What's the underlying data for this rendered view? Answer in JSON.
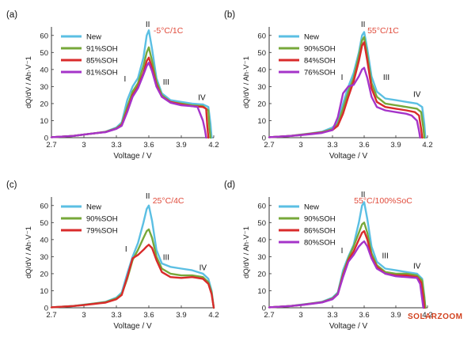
{
  "watermark": "SOLARZOOM",
  "colors": {
    "New": "#5bbfe3",
    "green": "#77a83a",
    "red": "#d92b2b",
    "purple": "#a534c9",
    "cond": "#e04a3a",
    "axis": "#333333"
  },
  "chart_data": [
    {
      "type": "line",
      "panel": "(a)",
      "condition": "-5°C/1C",
      "xlabel": "Voltage / V",
      "ylabel": "dQ/dV / Ah·V⁻1",
      "xlim": [
        2.7,
        4.2
      ],
      "ylim": [
        0,
        65
      ],
      "xticks": [
        "2.7",
        "3",
        "3.3",
        "3.6",
        "3.9",
        "4.2"
      ],
      "yticks": [
        "0",
        "10",
        "20",
        "30",
        "40",
        "50",
        "60"
      ],
      "peak_labels": [
        {
          "text": "I",
          "x": 3.38,
          "y": 33
        },
        {
          "text": "II",
          "x": 3.59,
          "y": 65
        },
        {
          "text": "III",
          "x": 3.76,
          "y": 31
        },
        {
          "text": "IV",
          "x": 4.09,
          "y": 22
        }
      ],
      "series": [
        {
          "name": "New",
          "color": "#5bbfe3",
          "x": [
            2.7,
            2.9,
            3.0,
            3.1,
            3.2,
            3.3,
            3.35,
            3.4,
            3.45,
            3.5,
            3.55,
            3.58,
            3.6,
            3.63,
            3.67,
            3.72,
            3.8,
            3.9,
            4.0,
            4.1,
            4.15,
            4.17,
            4.18
          ],
          "y": [
            0.3,
            1,
            1.8,
            2.6,
            3.5,
            6,
            9,
            22,
            30,
            35,
            47,
            60,
            63,
            52,
            35,
            26,
            22,
            21,
            20,
            19.5,
            18,
            8,
            0
          ]
        },
        {
          "name": "91%SOH",
          "color": "#77a83a",
          "x": [
            2.7,
            2.9,
            3.0,
            3.1,
            3.2,
            3.3,
            3.35,
            3.4,
            3.45,
            3.5,
            3.55,
            3.58,
            3.6,
            3.63,
            3.67,
            3.72,
            3.8,
            3.9,
            4.0,
            4.1,
            4.15,
            4.16,
            4.17
          ],
          "y": [
            0.3,
            1,
            1.8,
            2.6,
            3.4,
            5.5,
            8,
            18,
            27,
            32,
            42,
            50,
            53,
            45,
            33,
            25,
            21,
            20,
            19,
            18.5,
            16,
            6,
            0
          ]
        },
        {
          "name": "85%SOH",
          "color": "#d92b2b",
          "x": [
            2.7,
            2.9,
            3.0,
            3.1,
            3.2,
            3.3,
            3.35,
            3.4,
            3.45,
            3.5,
            3.55,
            3.58,
            3.6,
            3.63,
            3.67,
            3.72,
            3.8,
            3.9,
            4.0,
            4.1,
            4.13,
            4.14,
            4.15
          ],
          "y": [
            0.3,
            1,
            1.8,
            2.6,
            3.3,
            5.3,
            7.5,
            16,
            25,
            30,
            38,
            45,
            47,
            41,
            31,
            24,
            21,
            19.5,
            18.5,
            18,
            17,
            7,
            0
          ]
        },
        {
          "name": "81%SOH",
          "color": "#a534c9",
          "x": [
            2.7,
            2.9,
            3.0,
            3.1,
            3.2,
            3.3,
            3.35,
            3.4,
            3.45,
            3.5,
            3.55,
            3.58,
            3.6,
            3.63,
            3.67,
            3.72,
            3.8,
            3.9,
            4.0,
            4.05,
            4.1,
            4.12,
            4.13
          ],
          "y": [
            0.3,
            1,
            1.8,
            2.6,
            3.2,
            5.2,
            7,
            15,
            24,
            29,
            37,
            42,
            44,
            39,
            30,
            24,
            20.5,
            19,
            18.5,
            18,
            10,
            4,
            0
          ]
        }
      ]
    },
    {
      "type": "line",
      "panel": "(b)",
      "condition": "55°C/1C",
      "xlabel": "Voltage / V",
      "ylabel": "dQ/dV / Ah·V⁻1",
      "xlim": [
        2.7,
        4.2
      ],
      "ylim": [
        0,
        65
      ],
      "xticks": [
        "2.7",
        "3",
        "3.3",
        "3.6",
        "3.9",
        "4.2"
      ],
      "yticks": [
        "0",
        "10",
        "20",
        "30",
        "40",
        "50",
        "60"
      ],
      "peak_labels": [
        {
          "text": "I",
          "x": 3.39,
          "y": 34
        },
        {
          "text": "II",
          "x": 3.59,
          "y": 65
        },
        {
          "text": "III",
          "x": 3.81,
          "y": 34
        },
        {
          "text": "IV",
          "x": 4.1,
          "y": 24
        }
      ],
      "series": [
        {
          "name": "New",
          "color": "#5bbfe3",
          "x": [
            2.7,
            2.9,
            3.0,
            3.1,
            3.2,
            3.3,
            3.35,
            3.4,
            3.45,
            3.5,
            3.55,
            3.58,
            3.6,
            3.63,
            3.67,
            3.72,
            3.8,
            3.9,
            4.0,
            4.1,
            4.15,
            4.17,
            4.18
          ],
          "y": [
            0.3,
            1,
            1.8,
            2.6,
            3.5,
            6,
            9,
            20,
            30,
            38,
            50,
            60,
            62,
            52,
            36,
            27,
            23,
            22,
            21,
            20,
            18,
            8,
            0
          ]
        },
        {
          "name": "90%SOH",
          "color": "#77a83a",
          "x": [
            2.7,
            2.9,
            3.0,
            3.1,
            3.2,
            3.3,
            3.35,
            3.4,
            3.45,
            3.5,
            3.55,
            3.58,
            3.6,
            3.63,
            3.67,
            3.72,
            3.8,
            3.9,
            4.0,
            4.1,
            4.14,
            4.16,
            4.17
          ],
          "y": [
            0.3,
            1,
            1.7,
            2.4,
            3.2,
            5,
            8,
            17,
            27,
            35,
            48,
            57,
            59,
            48,
            32,
            24,
            20,
            19,
            18,
            17,
            15,
            6,
            0
          ]
        },
        {
          "name": "84%SOH",
          "color": "#d92b2b",
          "x": [
            2.7,
            2.9,
            3.0,
            3.1,
            3.2,
            3.3,
            3.35,
            3.4,
            3.45,
            3.5,
            3.55,
            3.58,
            3.6,
            3.63,
            3.67,
            3.72,
            3.8,
            3.9,
            4.0,
            4.08,
            4.12,
            4.14,
            4.15
          ],
          "y": [
            0.3,
            1,
            1.6,
            2.3,
            3,
            4.5,
            7,
            14,
            24,
            33,
            45,
            54,
            56,
            45,
            29,
            21,
            18,
            17,
            16,
            15,
            13,
            5,
            0
          ]
        },
        {
          "name": "76%SOH",
          "color": "#a534c9",
          "x": [
            2.7,
            2.9,
            3.0,
            3.1,
            3.2,
            3.3,
            3.35,
            3.4,
            3.45,
            3.5,
            3.55,
            3.58,
            3.6,
            3.63,
            3.67,
            3.72,
            3.8,
            3.9,
            4.0,
            4.05,
            4.1,
            4.12,
            4.13
          ],
          "y": [
            0.3,
            1,
            1.5,
            2.1,
            2.8,
            4.5,
            12,
            26,
            30,
            31,
            36,
            40,
            41,
            35,
            24,
            18,
            16,
            15,
            14,
            13,
            10,
            4,
            0
          ]
        }
      ]
    },
    {
      "type": "line",
      "panel": "(c)",
      "condition": "25°C/4C",
      "xlabel": "Voltage / V",
      "ylabel": "dQ/dV / Ah·V⁻1",
      "xlim": [
        2.7,
        4.2
      ],
      "ylim": [
        0,
        65
      ],
      "xticks": [
        "2.7",
        "3",
        "3.3",
        "3.6",
        "3.9",
        "4.2"
      ],
      "yticks": [
        "0",
        "10",
        "20",
        "30",
        "40",
        "50",
        "60"
      ],
      "peak_labels": [
        {
          "text": "I",
          "x": 3.39,
          "y": 33
        },
        {
          "text": "II",
          "x": 3.59,
          "y": 64
        },
        {
          "text": "III",
          "x": 3.76,
          "y": 28
        },
        {
          "text": "IV",
          "x": 4.1,
          "y": 22
        }
      ],
      "series": [
        {
          "name": "New",
          "color": "#5bbfe3",
          "x": [
            2.7,
            2.9,
            3.0,
            3.1,
            3.2,
            3.3,
            3.35,
            3.4,
            3.45,
            3.5,
            3.55,
            3.58,
            3.6,
            3.63,
            3.67,
            3.72,
            3.8,
            3.9,
            4.0,
            4.1,
            4.15,
            4.18,
            4.2
          ],
          "y": [
            0.3,
            1,
            1.8,
            2.6,
            3.5,
            6,
            9,
            20,
            30,
            38,
            50,
            58,
            60,
            51,
            34,
            26,
            24,
            23,
            22,
            20,
            17,
            10,
            0
          ]
        },
        {
          "name": "90%SOH",
          "color": "#77a83a",
          "x": [
            2.7,
            2.9,
            3.0,
            3.1,
            3.2,
            3.3,
            3.35,
            3.4,
            3.45,
            3.5,
            3.55,
            3.58,
            3.6,
            3.63,
            3.67,
            3.72,
            3.8,
            3.9,
            4.0,
            4.1,
            4.15,
            4.18,
            4.2
          ],
          "y": [
            0.3,
            1,
            1.7,
            2.5,
            3.3,
            5.5,
            8,
            17,
            28,
            34,
            41,
            45,
            46,
            41,
            30,
            23,
            20,
            19,
            19,
            18,
            15,
            9,
            0
          ]
        },
        {
          "name": "79%SOH",
          "color": "#d92b2b",
          "x": [
            2.7,
            2.9,
            3.0,
            3.1,
            3.2,
            3.3,
            3.35,
            3.4,
            3.45,
            3.5,
            3.55,
            3.58,
            3.6,
            3.63,
            3.67,
            3.72,
            3.8,
            3.9,
            4.0,
            4.1,
            4.15,
            4.18,
            4.2
          ],
          "y": [
            0.3,
            1,
            1.6,
            2.3,
            3,
            5,
            7.5,
            18,
            29,
            31,
            34,
            36,
            37,
            35,
            28,
            21,
            18,
            17.5,
            18,
            17,
            14,
            8,
            0
          ]
        }
      ]
    },
    {
      "type": "line",
      "panel": "(d)",
      "condition": "55°C/100%SoC",
      "xlabel": "Voltage / V",
      "ylabel": "dQ/dV / Ah·V⁻1",
      "xlim": [
        2.7,
        4.2
      ],
      "ylim": [
        0,
        65
      ],
      "xticks": [
        "2.7",
        "3",
        "3.3",
        "3.6",
        "3.9",
        "4.2"
      ],
      "yticks": [
        "0",
        "10",
        "20",
        "30",
        "40",
        "50",
        "60"
      ],
      "peak_labels": [
        {
          "text": "I",
          "x": 3.39,
          "y": 32
        },
        {
          "text": "II",
          "x": 3.59,
          "y": 65
        },
        {
          "text": "III",
          "x": 3.8,
          "y": 29
        },
        {
          "text": "IV",
          "x": 4.1,
          "y": 23
        }
      ],
      "series": [
        {
          "name": "New",
          "color": "#5bbfe3",
          "x": [
            2.7,
            2.9,
            3.0,
            3.1,
            3.2,
            3.3,
            3.35,
            3.4,
            3.45,
            3.5,
            3.55,
            3.58,
            3.6,
            3.63,
            3.67,
            3.72,
            3.8,
            3.9,
            4.0,
            4.1,
            4.15,
            4.17,
            4.18
          ],
          "y": [
            0.3,
            1,
            1.8,
            2.6,
            3.5,
            6,
            9,
            22,
            30,
            37,
            50,
            60,
            62,
            52,
            36,
            27,
            23,
            22,
            21,
            20,
            17,
            7,
            0
          ]
        },
        {
          "name": "90%SOH",
          "color": "#77a83a",
          "x": [
            2.7,
            2.9,
            3.0,
            3.1,
            3.2,
            3.3,
            3.35,
            3.4,
            3.45,
            3.5,
            3.55,
            3.58,
            3.6,
            3.63,
            3.67,
            3.72,
            3.8,
            3.9,
            4.0,
            4.1,
            4.15,
            4.17,
            4.18
          ],
          "y": [
            0.3,
            1,
            1.7,
            2.5,
            3.3,
            5.5,
            8.5,
            20,
            29,
            36,
            44,
            49,
            50,
            44,
            32,
            25,
            21,
            20,
            20,
            19,
            16,
            6,
            0
          ]
        },
        {
          "name": "86%SOH",
          "color": "#d92b2b",
          "x": [
            2.7,
            2.9,
            3.0,
            3.1,
            3.2,
            3.3,
            3.35,
            3.4,
            3.45,
            3.5,
            3.55,
            3.58,
            3.6,
            3.63,
            3.67,
            3.72,
            3.8,
            3.9,
            4.0,
            4.1,
            4.14,
            4.16,
            4.17
          ],
          "y": [
            0.3,
            1,
            1.6,
            2.4,
            3.2,
            5.2,
            8,
            19,
            28,
            33,
            40,
            44,
            45,
            40,
            30,
            24,
            20,
            19,
            19,
            18,
            15,
            6,
            0
          ]
        },
        {
          "name": "80%SOH",
          "color": "#a534c9",
          "x": [
            2.7,
            2.9,
            3.0,
            3.1,
            3.2,
            3.3,
            3.35,
            3.4,
            3.45,
            3.5,
            3.55,
            3.58,
            3.6,
            3.63,
            3.67,
            3.72,
            3.8,
            3.9,
            4.0,
            4.1,
            4.13,
            4.15,
            4.16
          ],
          "y": [
            0.3,
            1,
            1.6,
            2.3,
            3.1,
            5,
            8,
            18,
            27,
            31,
            36,
            38,
            39,
            36,
            29,
            23,
            20,
            18.5,
            18,
            17.5,
            14,
            5,
            0
          ]
        }
      ]
    }
  ]
}
